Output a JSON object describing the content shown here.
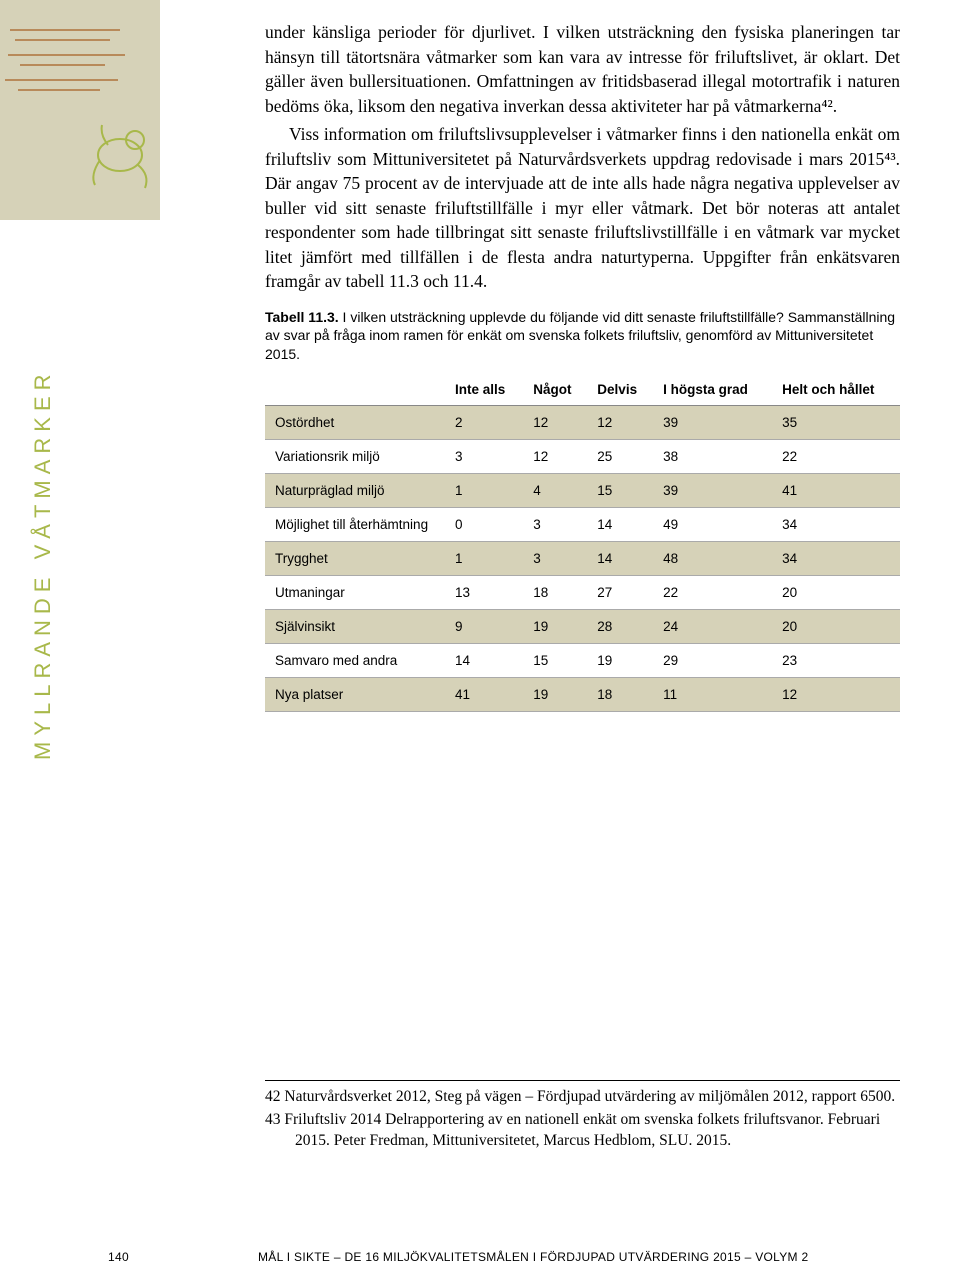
{
  "sidebar": {
    "vertical_label": "MYLLRANDE VÅTMARKER",
    "accent_color": "#a8b84a",
    "graphic_bg": "#d6d2b8",
    "stripe_color": "#b88a5a",
    "frog_color": "#a8b84a"
  },
  "body": {
    "p1": "under känsliga perioder för djurlivet. I vilken utsträckning den fysiska planeringen tar hänsyn till tätortsnära våtmarker som kan vara av intresse för friluftslivet, är oklart. Det gäller även bullersituationen. Omfattningen av fritidsbaserad illegal motortrafik i naturen bedöms öka, liksom den negativa inverkan dessa aktiviteter har på våtmarkerna⁴².",
    "p2": "Viss information om friluftslivsupplevelser i våtmarker finns i den nationella enkät om friluftsliv som Mittuniversitetet på Naturvårdsverkets uppdrag redovisade i mars 2015⁴³. Där angav 75 procent av de intervjuade att de inte alls hade några negativa upplevelser av buller vid sitt senaste friluftstillfälle i myr eller våtmark. Det bör noteras att antalet respondenter som hade tillbringat sitt senaste friluftslivstillfälle i en våtmark var mycket litet jämfört med tillfällen i de flesta andra naturtyperna. Uppgifter från enkätsvaren framgår av tabell 11.3 och 11.4."
  },
  "table": {
    "caption_bold": "Tabell 11.3.",
    "caption_rest": " I vilken utsträckning upplevde du följande vid ditt senaste friluftstillfälle? Sammanställning av svar på fråga inom ramen för enkät om svenska folkets friluftsliv, genomförd av Mittuniversitetet 2015.",
    "headers": [
      "",
      "Inte alls",
      "Något",
      "Delvis",
      "I högsta grad",
      "Helt och hållet"
    ],
    "rows": [
      {
        "label": "Ostördhet",
        "v": [
          "2",
          "12",
          "12",
          "39",
          "35"
        ]
      },
      {
        "label": "Variationsrik miljö",
        "v": [
          "3",
          "12",
          "25",
          "38",
          "22"
        ]
      },
      {
        "label": "Naturpräglad miljö",
        "v": [
          "1",
          "4",
          "15",
          "39",
          "41"
        ]
      },
      {
        "label": "Möjlighet till återhämtning",
        "v": [
          "0",
          "3",
          "14",
          "49",
          "34"
        ]
      },
      {
        "label": "Trygghet",
        "v": [
          "1",
          "3",
          "14",
          "48",
          "34"
        ]
      },
      {
        "label": "Utmaningar",
        "v": [
          "13",
          "18",
          "27",
          "22",
          "20"
        ]
      },
      {
        "label": "Självinsikt",
        "v": [
          "9",
          "19",
          "28",
          "24",
          "20"
        ]
      },
      {
        "label": "Samvaro med andra",
        "v": [
          "14",
          "15",
          "19",
          "29",
          "23"
        ]
      },
      {
        "label": "Nya platser",
        "v": [
          "41",
          "19",
          "18",
          "11",
          "12"
        ]
      }
    ],
    "row_alt_color": "#d6d2b8",
    "row_base_color": "#ffffff"
  },
  "footnotes": {
    "fn42": "42   Naturvårdsverket 2012, Steg på vägen – Fördjupad utvärdering av miljömålen 2012, rapport 6500.",
    "fn43": "43   Friluftsliv 2014 Delrapportering av en nationell enkät om svenska folkets friluftsvanor. Februari 2015. Peter Fredman, Mittuniversitetet, Marcus Hedblom, SLU. 2015."
  },
  "footer": {
    "page_number": "140",
    "text": "MÅL I SIKTE – DE 16 MILJÖKVALITETSMÅLEN I FÖRDJUPAD UTVÄRDERING 2015 – VOLYM 2"
  }
}
